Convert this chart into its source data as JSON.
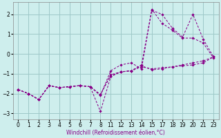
{
  "xlabel": "Windchill (Refroidissement éolien,°C)",
  "bg_color": "#ceeeed",
  "line_color": "#880088",
  "grid_color": "#9ec8c8",
  "xlim": [
    -0.5,
    19.5
  ],
  "ylim": [
    -3.3,
    2.6
  ],
  "xtick_labels": [
    "0",
    "1",
    "2",
    "3",
    "4",
    "5",
    "6",
    "7",
    "8",
    "11",
    "12",
    "13",
    "14",
    "15",
    "17",
    "18",
    "19",
    "20",
    "21",
    "23"
  ],
  "yticks": [
    -3,
    -2,
    -1,
    0,
    1,
    2
  ],
  "lines": [
    {
      "xi": [
        0,
        1,
        2,
        3,
        4,
        5,
        6,
        7,
        8,
        9,
        10,
        11,
        12,
        13,
        14,
        15,
        16,
        17,
        18,
        19
      ],
      "y": [
        -1.8,
        -2.0,
        -2.3,
        -1.6,
        -1.7,
        -1.65,
        -1.6,
        -1.65,
        -2.1,
        -0.85,
        -0.55,
        -0.45,
        -0.75,
        2.2,
        2.0,
        1.3,
        0.85,
        2.0,
        0.75,
        -0.15
      ]
    },
    {
      "xi": [
        0,
        1,
        2,
        3,
        4,
        5,
        6,
        7,
        8,
        9,
        10,
        11,
        12,
        13,
        14,
        15,
        16,
        17,
        18,
        19
      ],
      "y": [
        -1.8,
        -2.0,
        -2.3,
        -1.6,
        -1.7,
        -1.65,
        -1.6,
        -1.65,
        -2.9,
        -1.15,
        -0.9,
        -0.85,
        -0.55,
        2.25,
        1.55,
        1.2,
        0.8,
        0.8,
        0.55,
        -0.2
      ]
    },
    {
      "xi": [
        0,
        1,
        2,
        3,
        4,
        5,
        6,
        7,
        8,
        9,
        10,
        11,
        12,
        13,
        14,
        15,
        16,
        17,
        18,
        19
      ],
      "y": [
        -1.8,
        -2.0,
        -2.3,
        -1.6,
        -1.7,
        -1.65,
        -1.6,
        -1.65,
        -2.05,
        -1.1,
        -0.9,
        -0.85,
        -0.6,
        -0.8,
        -0.75,
        -0.65,
        -0.55,
        -0.45,
        -0.35,
        -0.15
      ]
    },
    {
      "xi": [
        0,
        1,
        2,
        3,
        4,
        5,
        6,
        7,
        8,
        9,
        10,
        11,
        12,
        13,
        14,
        15,
        16,
        17,
        18,
        19
      ],
      "y": [
        -1.8,
        -2.0,
        -2.3,
        -1.6,
        -1.7,
        -1.65,
        -1.6,
        -1.65,
        -2.05,
        -1.05,
        -0.9,
        -0.85,
        -0.65,
        -0.75,
        -0.7,
        -0.65,
        -0.6,
        -0.55,
        -0.45,
        -0.15
      ]
    }
  ]
}
